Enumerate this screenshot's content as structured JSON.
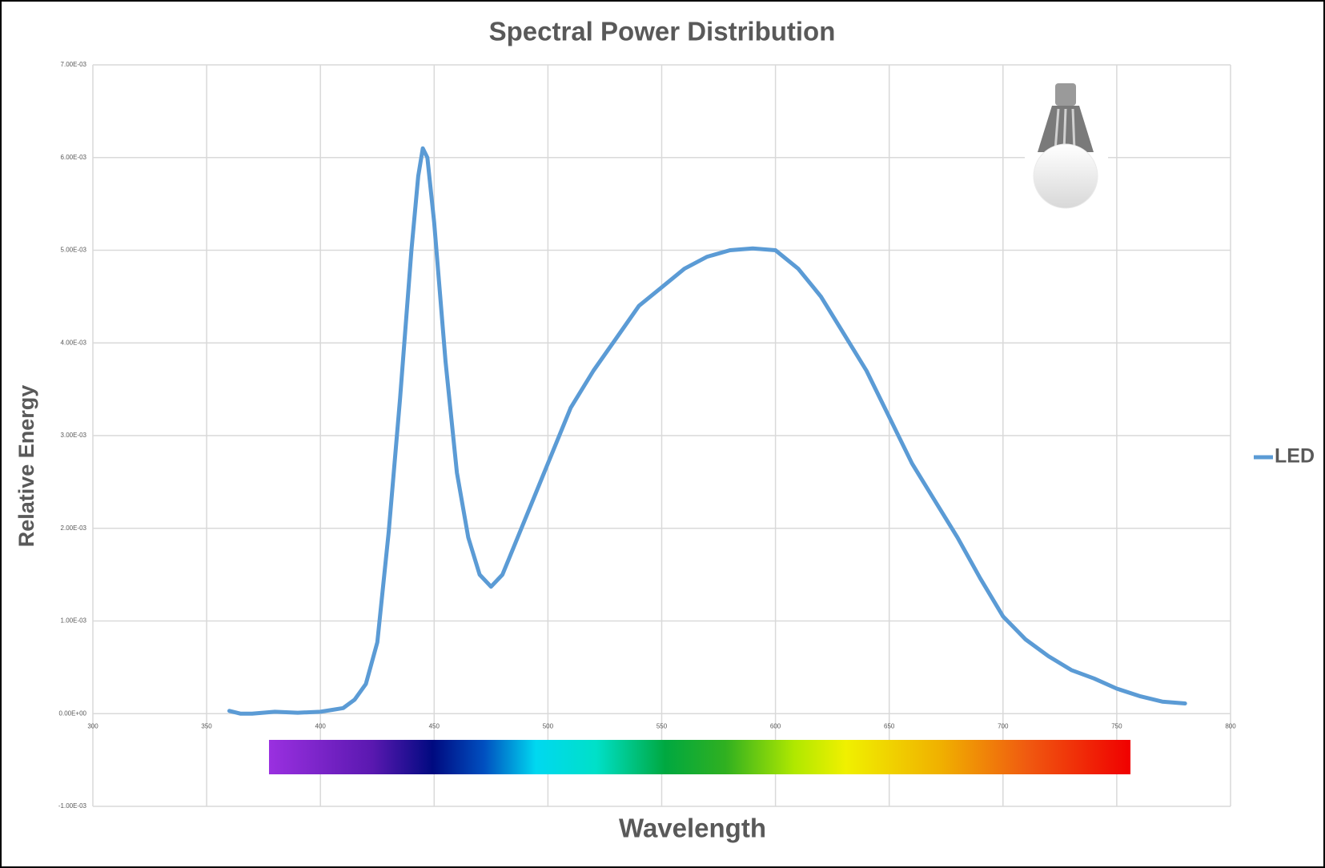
{
  "chart_data": {
    "type": "line",
    "title": "Spectral Power Distribution",
    "x_label": "Wavelength",
    "y_label": "Relative Energy",
    "x": [
      360,
      365,
      370,
      380,
      390,
      400,
      405,
      410,
      415,
      420,
      425,
      430,
      435,
      440,
      443,
      445,
      447,
      450,
      455,
      460,
      465,
      470,
      475,
      480,
      485,
      490,
      495,
      500,
      505,
      510,
      520,
      530,
      540,
      550,
      560,
      570,
      580,
      590,
      600,
      610,
      620,
      630,
      640,
      650,
      660,
      670,
      680,
      690,
      700,
      710,
      720,
      730,
      740,
      750,
      760,
      770,
      780
    ],
    "series": [
      {
        "name": "LED",
        "color": "#5b9bd5",
        "values": [
          3e-05,
          0.0,
          0.0,
          2e-05,
          1e-05,
          2e-05,
          4e-05,
          6e-05,
          0.00015,
          0.00032,
          0.00077,
          0.00196,
          0.0034,
          0.005,
          0.0058,
          0.0061,
          0.006,
          0.0053,
          0.0038,
          0.0026,
          0.0019,
          0.0015,
          0.00137,
          0.0015,
          0.0018,
          0.0021,
          0.0024,
          0.0027,
          0.003,
          0.0033,
          0.0037,
          0.00405,
          0.0044,
          0.0046,
          0.0048,
          0.00493,
          0.005,
          0.00502,
          0.005,
          0.0048,
          0.0045,
          0.0041,
          0.0037,
          0.0032,
          0.0027,
          0.0023,
          0.0019,
          0.00146,
          0.00105,
          0.0008,
          0.00062,
          0.00047,
          0.00038,
          0.00027,
          0.00019,
          0.00013,
          0.00011
        ]
      }
    ],
    "xlim": [
      300,
      800
    ],
    "xticks": [
      300,
      350,
      400,
      450,
      500,
      550,
      600,
      650,
      700,
      750,
      800
    ],
    "ylim": [
      -0.001,
      0.007
    ],
    "yticks": [
      {
        "value": -0.001,
        "label": "-1.00E-03"
      },
      {
        "value": 0,
        "label": "0.00E+00"
      },
      {
        "value": 0.001,
        "label": "1.00E-03"
      },
      {
        "value": 0.002,
        "label": "2.00E-03"
      },
      {
        "value": 0.003,
        "label": "3.00E-03"
      },
      {
        "value": 0.004,
        "label": "4.00E-03"
      },
      {
        "value": 0.005,
        "label": "5.00E-03"
      },
      {
        "value": 0.006,
        "label": "6.00E-03"
      },
      {
        "value": 0.007,
        "label": "7.00E-03"
      }
    ],
    "grid": true,
    "legend": "right"
  }
}
